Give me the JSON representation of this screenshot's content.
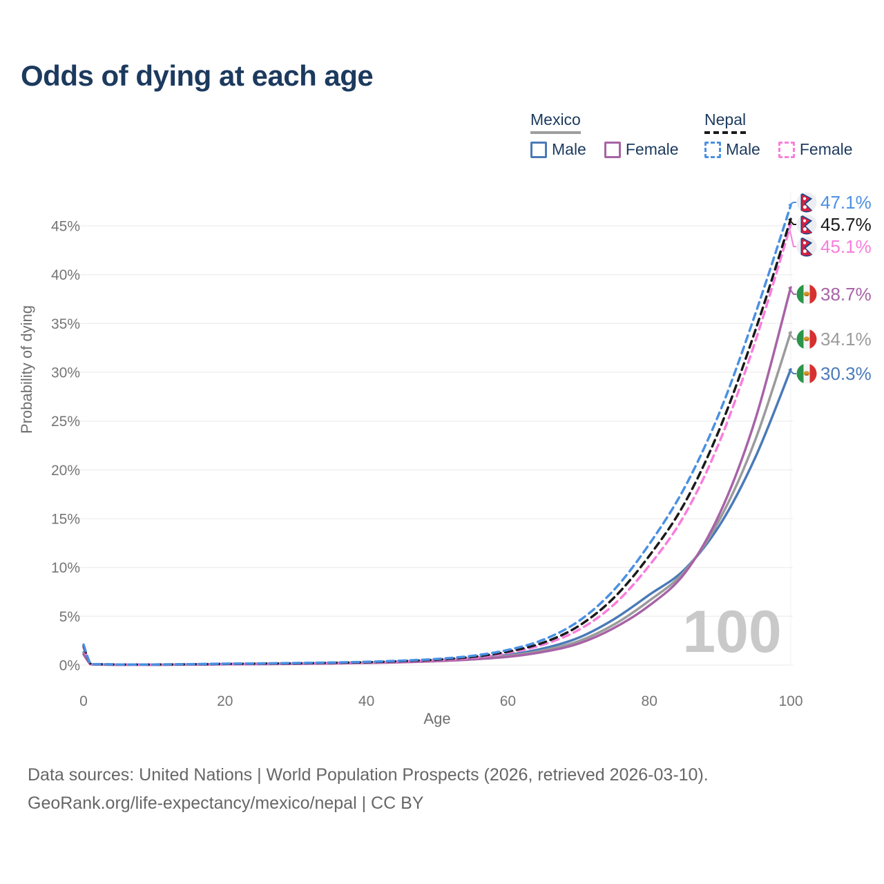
{
  "title": {
    "text": "Odds of dying at each age",
    "color": "#1c3a5e"
  },
  "legend": {
    "groups": [
      {
        "label": "Mexico",
        "line_style": "solid",
        "underline_color": "#9e9e9e",
        "items": [
          {
            "label": "Male",
            "color": "#4a7ab8"
          },
          {
            "label": "Female",
            "color": "#a763a6"
          }
        ]
      },
      {
        "label": "Nepal",
        "line_style": "dashed",
        "underline_color": "#1a1a1a",
        "items": [
          {
            "label": "Male",
            "color": "#4a90e2"
          },
          {
            "label": "Female",
            "color": "#f97ddb"
          }
        ]
      }
    ]
  },
  "watermark": {
    "text": "100",
    "color": "#c9c9c9"
  },
  "footer": {
    "line1": "Data sources: United Nations | World Population Prospects (2026, retrieved 2026-03-10).",
    "line2": "GeoRank.org/life-expectancy/mexico/nepal | CC BY"
  },
  "chart_data": {
    "type": "line",
    "title": "Odds of dying at each age",
    "xlabel": "Age",
    "ylabel": "Probability of dying",
    "xlim": [
      0,
      100
    ],
    "ylim": [
      0,
      48.4
    ],
    "grid": "horizontal",
    "legend_position": "top-right",
    "hovered_age": 100,
    "xticks": [
      {
        "v": 0,
        "label": "0"
      },
      {
        "v": 20,
        "label": "20"
      },
      {
        "v": 40,
        "label": "40"
      },
      {
        "v": 60,
        "label": "60"
      },
      {
        "v": 80,
        "label": "80"
      },
      {
        "v": 100,
        "label": "100"
      }
    ],
    "yticks": [
      {
        "v": 0,
        "label": "0%"
      },
      {
        "v": 5,
        "label": "5%"
      },
      {
        "v": 10,
        "label": "10%"
      },
      {
        "v": 15,
        "label": "15%"
      },
      {
        "v": 20,
        "label": "20%"
      },
      {
        "v": 25,
        "label": "25%"
      },
      {
        "v": 30,
        "label": "30%"
      },
      {
        "v": 35,
        "label": "35%"
      },
      {
        "v": 40,
        "label": "40%"
      },
      {
        "v": 45,
        "label": "45%"
      }
    ],
    "x": [
      0,
      1,
      2,
      5,
      10,
      15,
      20,
      25,
      30,
      35,
      40,
      45,
      50,
      55,
      60,
      65,
      70,
      75,
      80,
      85,
      90,
      95,
      100
    ],
    "series": [
      {
        "id": "mexico_male",
        "name": "Mexico Male",
        "country": "Mexico",
        "sex": "Male",
        "color": "#4a7ab8",
        "dash": "solid",
        "flag": "mexico",
        "end_label": "30.3%",
        "values": [
          1.3,
          0.09,
          0.07,
          0.04,
          0.04,
          0.07,
          0.11,
          0.14,
          0.17,
          0.21,
          0.27,
          0.36,
          0.5,
          0.73,
          1.05,
          1.7,
          2.8,
          4.7,
          7.2,
          9.8,
          14.4,
          21.3,
          30.3
        ]
      },
      {
        "id": "mexico_total",
        "name": "Mexico Both sexes",
        "country": "Mexico",
        "sex": "Both",
        "color": "#9b9b9b",
        "dash": "solid",
        "flag": "mexico",
        "end_label": "34.1%",
        "values": [
          1.2,
          0.085,
          0.065,
          0.035,
          0.035,
          0.06,
          0.09,
          0.12,
          0.15,
          0.19,
          0.24,
          0.32,
          0.45,
          0.66,
          0.95,
          1.5,
          2.45,
          4.15,
          6.6,
          9.6,
          15.0,
          23.1,
          34.1
        ]
      },
      {
        "id": "mexico_female",
        "name": "Mexico Female",
        "country": "Mexico",
        "sex": "Female",
        "color": "#a763a6",
        "dash": "solid",
        "flag": "mexico",
        "end_label": "38.7%",
        "values": [
          1.1,
          0.08,
          0.06,
          0.03,
          0.03,
          0.05,
          0.08,
          0.1,
          0.13,
          0.17,
          0.22,
          0.29,
          0.4,
          0.58,
          0.85,
          1.35,
          2.2,
          3.8,
          6.1,
          9.4,
          15.6,
          25.2,
          38.7
        ]
      },
      {
        "id": "nepal_female",
        "name": "Nepal Female",
        "country": "Nepal",
        "sex": "Female",
        "color": "#f97ddb",
        "dash": "dashed",
        "flag": "nepal",
        "end_label": "45.1%",
        "values": [
          1.8,
          0.11,
          0.085,
          0.05,
          0.05,
          0.07,
          0.1,
          0.13,
          0.16,
          0.2,
          0.26,
          0.36,
          0.5,
          0.75,
          1.25,
          2.1,
          3.6,
          6.2,
          10.2,
          15.4,
          23.0,
          33.2,
          45.1
        ]
      },
      {
        "id": "nepal_total",
        "name": "Nepal Both sexes",
        "country": "Nepal",
        "sex": "Both",
        "color": "#1a1a1a",
        "dash": "dashed",
        "flag": "nepal",
        "end_label": "45.7%",
        "values": [
          1.95,
          0.12,
          0.09,
          0.055,
          0.055,
          0.08,
          0.12,
          0.15,
          0.18,
          0.23,
          0.29,
          0.4,
          0.56,
          0.84,
          1.38,
          2.3,
          4.0,
          6.9,
          11.2,
          16.6,
          24.3,
          34.3,
          45.7
        ]
      },
      {
        "id": "nepal_male",
        "name": "Nepal Male",
        "country": "Nepal",
        "sex": "Male",
        "color": "#4a90e2",
        "dash": "dashed",
        "flag": "nepal",
        "end_label": "47.1%",
        "values": [
          2.1,
          0.13,
          0.1,
          0.06,
          0.06,
          0.09,
          0.14,
          0.17,
          0.21,
          0.26,
          0.33,
          0.45,
          0.63,
          0.95,
          1.55,
          2.6,
          4.5,
          7.7,
          12.4,
          18.2,
          26.0,
          36.0,
          47.1
        ]
      }
    ]
  }
}
